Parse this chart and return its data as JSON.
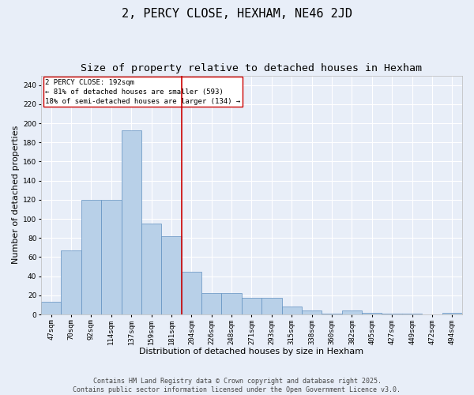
{
  "title": "2, PERCY CLOSE, HEXHAM, NE46 2JD",
  "subtitle": "Size of property relative to detached houses in Hexham",
  "xlabel": "Distribution of detached houses by size in Hexham",
  "ylabel": "Number of detached properties",
  "footer": "Contains HM Land Registry data © Crown copyright and database right 2025.\nContains public sector information licensed under the Open Government Licence v3.0.",
  "categories": [
    "47sqm",
    "70sqm",
    "92sqm",
    "114sqm",
    "137sqm",
    "159sqm",
    "181sqm",
    "204sqm",
    "226sqm",
    "248sqm",
    "271sqm",
    "293sqm",
    "315sqm",
    "338sqm",
    "360sqm",
    "382sqm",
    "405sqm",
    "427sqm",
    "449sqm",
    "472sqm",
    "494sqm"
  ],
  "values": [
    13,
    67,
    120,
    120,
    193,
    95,
    82,
    45,
    22,
    22,
    17,
    17,
    8,
    4,
    1,
    4,
    2,
    1,
    1,
    0,
    2
  ],
  "bar_color": "#b8d0e8",
  "bar_edge_color": "#6090c0",
  "bg_color": "#e8eef8",
  "grid_color": "#ffffff",
  "vline_color": "#cc0000",
  "annotation_text": "2 PERCY CLOSE: 192sqm\n← 81% of detached houses are smaller (593)\n18% of semi-detached houses are larger (134) →",
  "annotation_box_color": "#ffffff",
  "annotation_box_edge": "#cc0000",
  "ylim": [
    0,
    250
  ],
  "yticks": [
    0,
    20,
    40,
    60,
    80,
    100,
    120,
    140,
    160,
    180,
    200,
    220,
    240
  ],
  "title_fontsize": 11,
  "subtitle_fontsize": 9.5,
  "xlabel_fontsize": 8,
  "ylabel_fontsize": 8,
  "tick_fontsize": 6.5,
  "annotation_fontsize": 6.5,
  "footer_fontsize": 6
}
